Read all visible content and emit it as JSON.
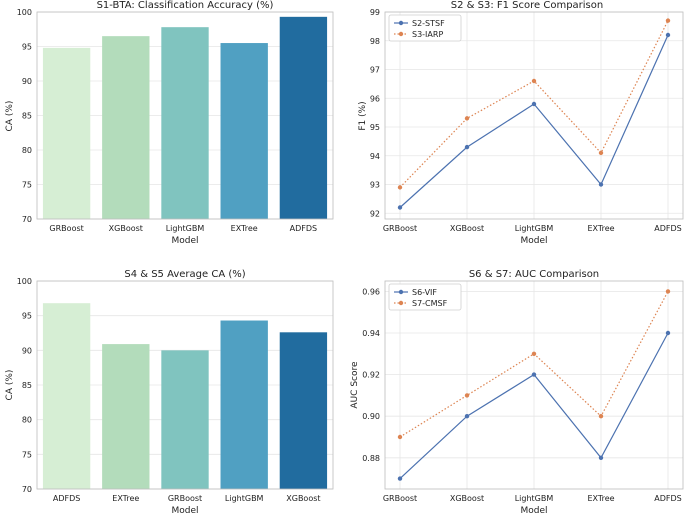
{
  "chart_data": [
    {
      "type": "bar",
      "title": "S1-BTA: Classification Accuracy (%)",
      "xlabel": "Model",
      "ylabel": "CA (%)",
      "ylim": [
        70,
        100
      ],
      "yticks": [
        70,
        75,
        80,
        85,
        90,
        95,
        100
      ],
      "categories": [
        "GRBoost",
        "XGBoost",
        "LightGBM",
        "EXTree",
        "ADFDS"
      ],
      "values": [
        94.8,
        96.5,
        97.8,
        95.5,
        99.3
      ],
      "colors": [
        "#d6eed4",
        "#b3dcbb",
        "#80c4bf",
        "#50a0c2",
        "#216c9f"
      ],
      "grid": true
    },
    {
      "type": "line",
      "title": "S2 & S3: F1 Score Comparison",
      "xlabel": "Model",
      "ylabel": "F1 (%)",
      "ylim": [
        91.8,
        99
      ],
      "yticks": [
        92,
        93,
        94,
        95,
        96,
        97,
        98,
        99
      ],
      "categories": [
        "GRBoost",
        "XGBoost",
        "LightGBM",
        "EXTree",
        "ADFDS"
      ],
      "series": [
        {
          "name": "S2-STSF",
          "values": [
            92.2,
            94.3,
            95.8,
            93.0,
            98.2
          ],
          "color": "#4c72b0",
          "style": "solid"
        },
        {
          "name": "S3-IARP",
          "values": [
            92.9,
            95.3,
            96.6,
            94.1,
            98.7
          ],
          "color": "#dd8452",
          "style": "dotted"
        }
      ],
      "legend": "top-left",
      "grid": true
    },
    {
      "type": "bar",
      "title": "S4 & S5 Average CA (%)",
      "xlabel": "Model",
      "ylabel": "CA (%)",
      "ylim": [
        70,
        100
      ],
      "yticks": [
        70,
        75,
        80,
        85,
        90,
        95,
        100
      ],
      "categories": [
        "ADFDS",
        "EXTree",
        "GRBoost",
        "LightGBM",
        "XGBoost"
      ],
      "values": [
        96.8,
        90.9,
        90.0,
        94.3,
        92.6
      ],
      "colors": [
        "#d6eed4",
        "#b3dcbb",
        "#80c4bf",
        "#50a0c2",
        "#216c9f"
      ],
      "grid": true
    },
    {
      "type": "line",
      "title": "S6 & S7: AUC Comparison",
      "xlabel": "Model",
      "ylabel": "AUC Score",
      "ylim": [
        0.865,
        0.965
      ],
      "yticks": [
        0.88,
        0.9,
        0.92,
        0.94,
        0.96
      ],
      "tick_format": "0.00",
      "categories": [
        "GRBoost",
        "XGBoost",
        "LightGBM",
        "EXTree",
        "ADFDS"
      ],
      "series": [
        {
          "name": "S6-VIF",
          "values": [
            0.87,
            0.9,
            0.92,
            0.88,
            0.94
          ],
          "color": "#4c72b0",
          "style": "solid"
        },
        {
          "name": "S7-CMSF",
          "values": [
            0.89,
            0.91,
            0.93,
            0.9,
            0.96
          ],
          "color": "#dd8452",
          "style": "dotted"
        }
      ],
      "legend": "top-left",
      "grid": true
    }
  ]
}
